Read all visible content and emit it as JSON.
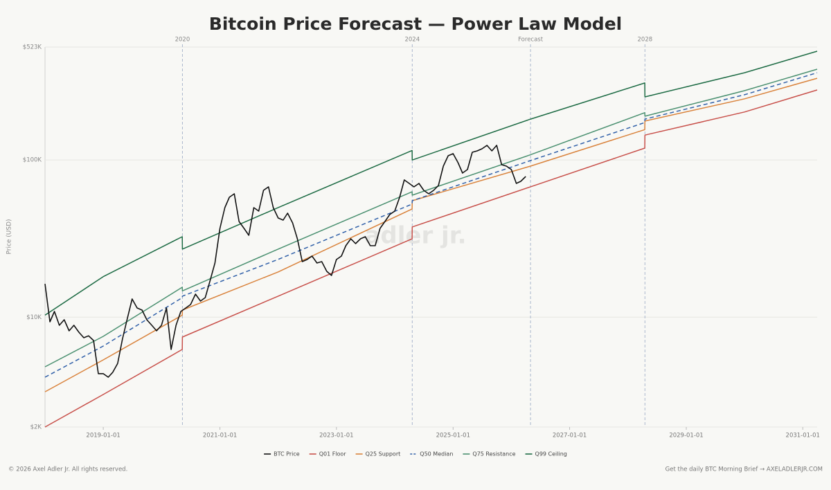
{
  "chart_data": {
    "type": "line",
    "title": "Bitcoin Price Forecast — Power Law Model",
    "y_label": "Price (USD)",
    "watermark": "adler jr.",
    "log_scale_y": true,
    "grid": true,
    "legend": "bottom",
    "xlim": [
      "2018-01-01",
      "2031-04-01"
    ],
    "xticks": [
      "2019-01-01",
      "2021-01-01",
      "2023-01-01",
      "2025-01-01",
      "2027-01-01",
      "2029-01-01",
      "2031-01-01"
    ],
    "ylim": [
      2000,
      523000
    ],
    "yticks": [
      {
        "value": 2000,
        "label": "$2K"
      },
      {
        "value": 10000,
        "label": "$10K"
      },
      {
        "value": 100000,
        "label": "$100K"
      },
      {
        "value": 523000,
        "label": "$523K"
      }
    ],
    "events": [
      {
        "x": "2020-05-11",
        "label": "2020"
      },
      {
        "x": "2024-04-20",
        "label": "2024"
      },
      {
        "x": "2026-05-01",
        "label": "Forecast"
      },
      {
        "x": "2028-04-17",
        "label": "2028"
      }
    ],
    "x": [
      "2018-01-01",
      "2019-01-01",
      "2020-05-10",
      "2020-05-11",
      "2022-01-01",
      "2024-04-19",
      "2024-04-20",
      "2026-05-01",
      "2028-04-16",
      "2028-04-17",
      "2030-01-01",
      "2031-04-01"
    ],
    "series": [
      {
        "name": "BTC Price",
        "color": "#111111",
        "dashed": false,
        "x": [
          "2018-01",
          "2018-02",
          "2018-03",
          "2018-04",
          "2018-05",
          "2018-06",
          "2018-07",
          "2018-08",
          "2018-09",
          "2018-10",
          "2018-11",
          "2018-12",
          "2019-01",
          "2019-02",
          "2019-03",
          "2019-04",
          "2019-05",
          "2019-06",
          "2019-07",
          "2019-08",
          "2019-09",
          "2019-10",
          "2019-11",
          "2019-12",
          "2020-01",
          "2020-02",
          "2020-03",
          "2020-04",
          "2020-05",
          "2020-06",
          "2020-07",
          "2020-08",
          "2020-09",
          "2020-10",
          "2020-11",
          "2020-12",
          "2021-01",
          "2021-02",
          "2021-03",
          "2021-04",
          "2021-05",
          "2021-06",
          "2021-07",
          "2021-08",
          "2021-09",
          "2021-10",
          "2021-11",
          "2021-12",
          "2022-01",
          "2022-02",
          "2022-03",
          "2022-04",
          "2022-05",
          "2022-06",
          "2022-07",
          "2022-08",
          "2022-09",
          "2022-10",
          "2022-11",
          "2022-12",
          "2023-01",
          "2023-02",
          "2023-03",
          "2023-04",
          "2023-05",
          "2023-06",
          "2023-07",
          "2023-08",
          "2023-09",
          "2023-10",
          "2023-11",
          "2023-12",
          "2024-01",
          "2024-02",
          "2024-03",
          "2024-04",
          "2024-05",
          "2024-06",
          "2024-07",
          "2024-08",
          "2024-09",
          "2024-10",
          "2024-11",
          "2024-12",
          "2025-01",
          "2025-02",
          "2025-03",
          "2025-04",
          "2025-05",
          "2025-06",
          "2025-07",
          "2025-08",
          "2025-09",
          "2025-10",
          "2025-11",
          "2025-12",
          "2026-01",
          "2026-02",
          "2026-03",
          "2026-04"
        ],
        "values": [
          16300,
          9340,
          10870,
          8880,
          9630,
          8190,
          8880,
          8020,
          7400,
          7610,
          7100,
          4370,
          4370,
          4150,
          4450,
          5080,
          7250,
          9820,
          13050,
          11440,
          11100,
          9630,
          8880,
          8190,
          8880,
          11440,
          6230,
          8880,
          10870,
          11440,
          12030,
          14010,
          12660,
          13320,
          17160,
          22110,
          36720,
          49760,
          57940,
          60950,
          40630,
          36720,
          33180,
          49760,
          47300,
          64120,
          67450,
          49760,
          42750,
          41460,
          45880,
          39810,
          31530,
          22560,
          23260,
          24470,
          22110,
          22560,
          19580,
          18420,
          23260,
          24470,
          28490,
          31530,
          29370,
          31530,
          32510,
          28490,
          28490,
          36720,
          40630,
          44960,
          47300,
          57940,
          74650,
          70960,
          67450,
          70960,
          64120,
          60950,
          64120,
          68830,
          91440,
          106470,
          109750,
          96180,
          82640,
          86950,
          112000,
          114290,
          117800,
          123920,
          114290,
          123920,
          93300,
          91440,
          86950,
          70960,
          73150,
          78520
        ]
      },
      {
        "name": "Q01 Floor",
        "color": "#c8504a",
        "dashed": false,
        "values": [
          2000,
          3220,
          6230,
          7470,
          13600,
          31500,
          37500,
          67500,
          119000,
          144000,
          202000,
          279000
        ]
      },
      {
        "name": "Q25 Support",
        "color": "#d9823b",
        "dashed": false,
        "values": [
          3350,
          5350,
          10300,
          11100,
          19400,
          48800,
          55100,
          91400,
          156000,
          177000,
          245000,
          331000
        ]
      },
      {
        "name": "Q50 Median",
        "color": "#2f5fa8",
        "dashed": true,
        "values": [
          4150,
          6550,
          13300,
          13600,
          23300,
          52400,
          55100,
          99200,
          173000,
          182000,
          260000,
          359000
        ]
      },
      {
        "name": "Q75 Resistance",
        "color": "#4a9070",
        "dashed": false,
        "values": [
          4830,
          7550,
          15500,
          14700,
          27100,
          62800,
          59700,
          108000,
          200000,
          190000,
          276000,
          378000
        ]
      },
      {
        "name": "Q99 Ceiling",
        "color": "#1d6b44",
        "dashed": false,
        "values": [
          10300,
          18100,
          32500,
          27100,
          49800,
          115000,
          100000,
          182000,
          309000,
          252000,
          359000,
          492000
        ]
      }
    ]
  },
  "footer": {
    "left": "© 2026 Axel Adler Jr. All rights reserved.",
    "right": "Get the daily BTC Morning Brief → AXELADLERJR.COM"
  }
}
